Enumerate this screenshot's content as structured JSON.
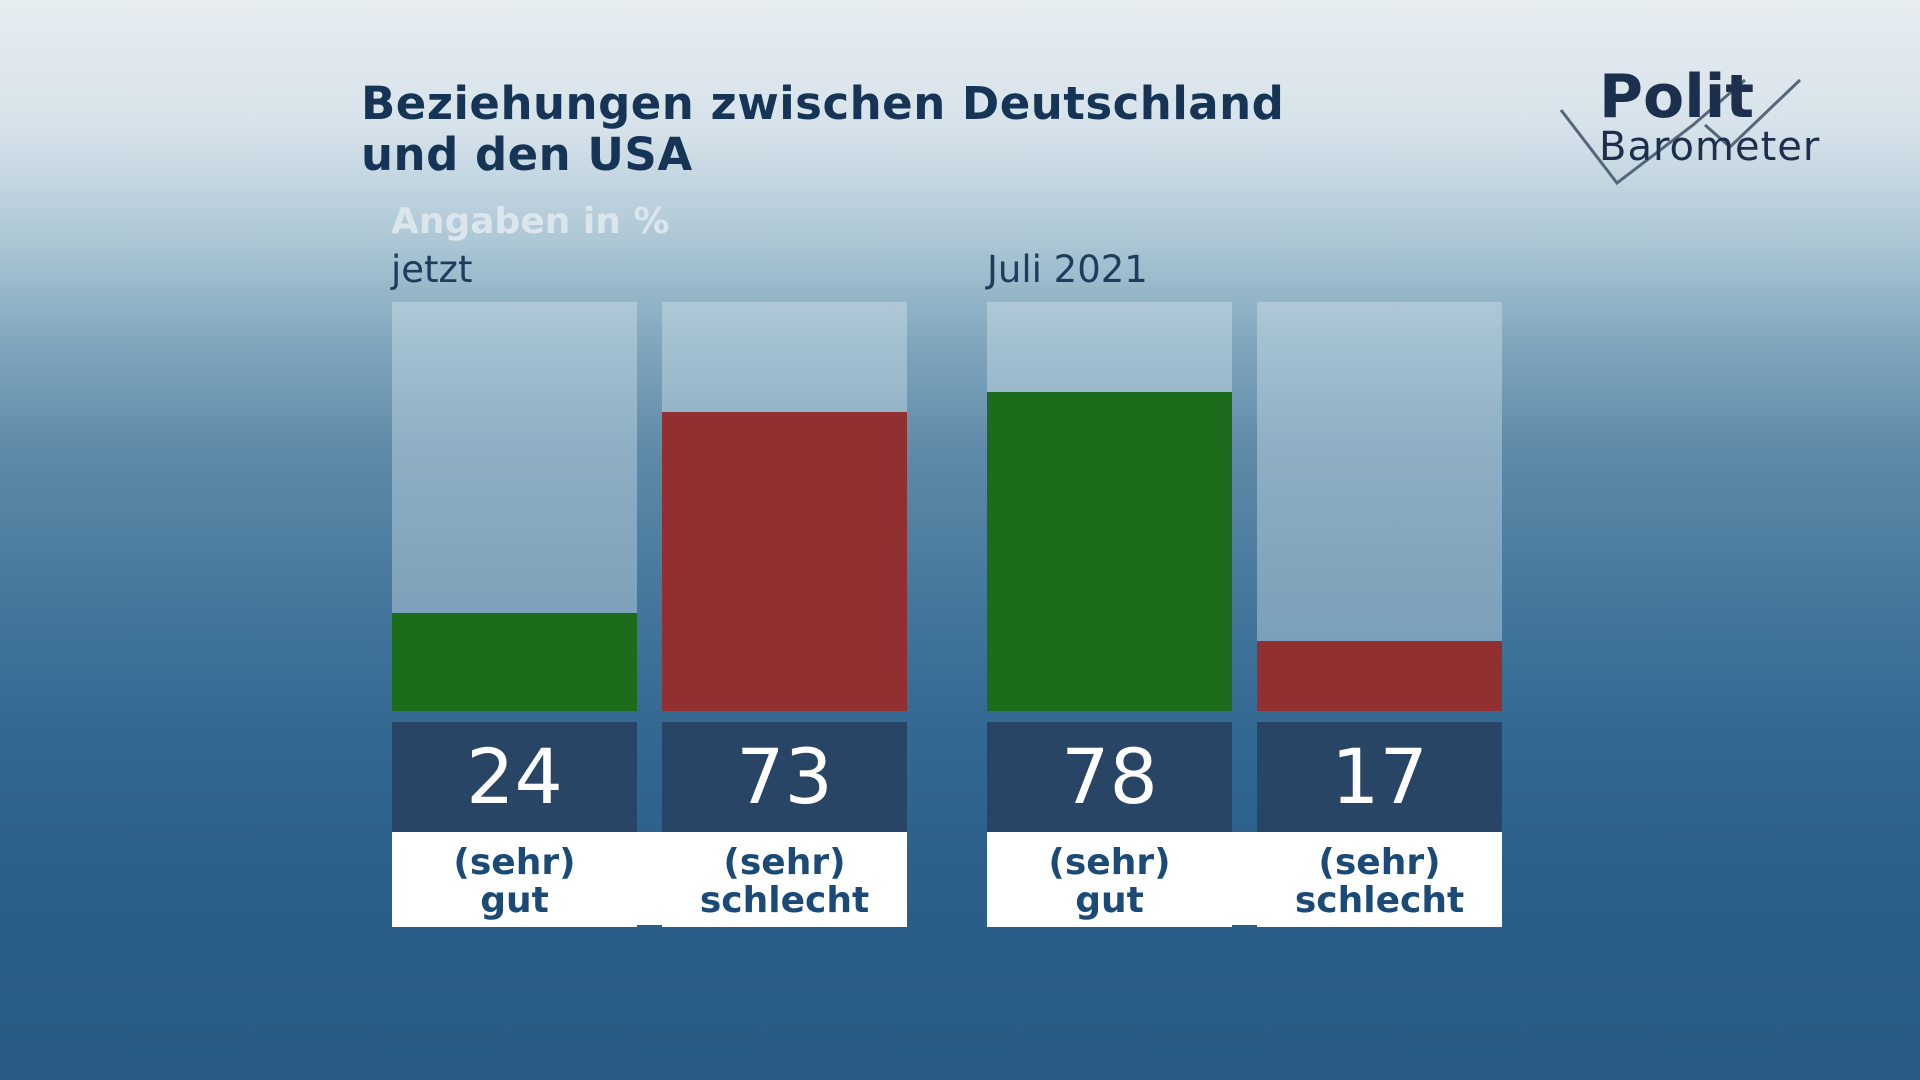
{
  "header": {
    "title_line1": "Beziehungen zwischen Deutschland",
    "title_line2": "und den USA",
    "unit": "Angaben in %"
  },
  "logo": {
    "line1": "Polit",
    "line2": "Barometer"
  },
  "colors": {
    "positive": "#1c6c1c",
    "negative": "#922f30",
    "value_box": "#294566",
    "title": "#163456"
  },
  "chart_data": {
    "type": "bar",
    "title": "Beziehungen zwischen Deutschland und den USA",
    "unit": "Angaben in %",
    "ylim": [
      0,
      100
    ],
    "categories": [
      "(sehr) gut",
      "(sehr) schlecht"
    ],
    "groups": [
      {
        "label": "jetzt",
        "bars": [
          {
            "label_line1": "(sehr)",
            "label_line2": "gut",
            "value": 24,
            "value_text": "24",
            "color": "#1c6c1c"
          },
          {
            "label_line1": "(sehr)",
            "label_line2": "schlecht",
            "value": 73,
            "value_text": "73",
            "color": "#922f30"
          }
        ]
      },
      {
        "label": "Juli 2021",
        "bars": [
          {
            "label_line1": "(sehr)",
            "label_line2": "gut",
            "value": 78,
            "value_text": "78",
            "color": "#1c6c1c"
          },
          {
            "label_line1": "(sehr)",
            "label_line2": "schlecht",
            "value": 17,
            "value_text": "17",
            "color": "#922f30"
          }
        ]
      }
    ]
  }
}
